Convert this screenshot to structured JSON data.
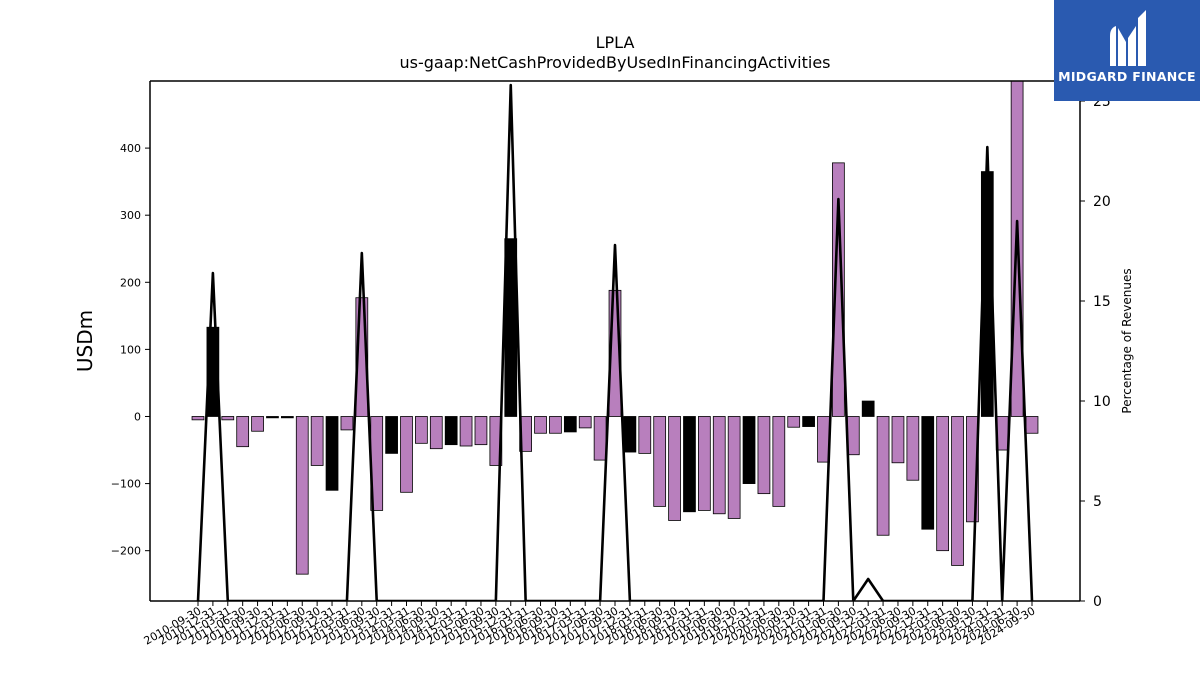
{
  "chart_data": {
    "type": "bar",
    "title": "LPLA",
    "subtitle": "us-gaap:NetCashProvidedByUsedInFinancingActivities",
    "ylabel": "USDm",
    "y2label": "Percentage of Revenues",
    "ylim": [
      -275,
      500
    ],
    "y2lim": [
      0,
      26
    ],
    "yticks": [
      -200,
      -100,
      0,
      100,
      200,
      300,
      400
    ],
    "y2ticks": [
      0,
      5,
      10,
      15,
      20,
      25
    ],
    "categories": [
      "2010-09-30",
      "2010-12-31",
      "2011-03-31",
      "2011-06-30",
      "2011-09-30",
      "2011-12-31",
      "2012-03-31",
      "2012-06-30",
      "2012-09-30",
      "2012-12-31",
      "2013-03-31",
      "2013-06-30",
      "2013-09-30",
      "2013-12-31",
      "2014-03-31",
      "2014-06-30",
      "2014-09-30",
      "2014-12-31",
      "2015-03-31",
      "2015-06-30",
      "2015-09-30",
      "2015-12-31",
      "2016-03-31",
      "2016-06-30",
      "2016-09-30",
      "2016-12-31",
      "2017-03-31",
      "2017-06-30",
      "2017-09-30",
      "2017-12-31",
      "2018-03-31",
      "2018-06-30",
      "2018-09-30",
      "2018-12-31",
      "2019-03-31",
      "2019-06-30",
      "2019-09-30",
      "2019-12-31",
      "2020-03-31",
      "2020-06-30",
      "2020-09-30",
      "2020-12-31",
      "2021-03-31",
      "2021-06-30",
      "2021-09-30",
      "2021-12-31",
      "2022-03-31",
      "2022-06-30",
      "2022-09-30",
      "2022-12-31",
      "2023-03-31",
      "2023-06-30",
      "2023-09-30",
      "2023-12-31",
      "2024-03-31",
      "2024-06-30",
      "2024-09-30"
    ],
    "values": [
      -5,
      133,
      -5,
      -45,
      -22,
      -2,
      -2,
      -235,
      -73,
      -110,
      -20,
      177,
      -140,
      -55,
      -113,
      -40,
      -48,
      -42,
      -44,
      -42,
      -73,
      265,
      -52,
      -25,
      -25,
      -23,
      -17,
      -65,
      188,
      -53,
      -55,
      -134,
      -155,
      -142,
      -140,
      -145,
      -152,
      -100,
      -115,
      -134,
      -16,
      -15,
      -68,
      378,
      -57,
      23,
      -177,
      -69,
      -95,
      -168,
      -200,
      -222,
      -157,
      365,
      -50,
      500,
      -25
    ],
    "bar_colors": [
      "p",
      "k",
      "p",
      "p",
      "p",
      "k",
      "k",
      "p",
      "p",
      "k",
      "p",
      "p",
      "p",
      "k",
      "p",
      "p",
      "p",
      "k",
      "p",
      "p",
      "p",
      "k",
      "p",
      "p",
      "p",
      "k",
      "p",
      "p",
      "p",
      "k",
      "p",
      "p",
      "p",
      "k",
      "p",
      "p",
      "p",
      "k",
      "p",
      "p",
      "p",
      "k",
      "p",
      "p",
      "p",
      "k",
      "p",
      "p",
      "p",
      "k",
      "p",
      "p",
      "p",
      "k",
      "p",
      "p",
      "p"
    ],
    "pct_of_revenues": [
      0,
      16.4,
      0,
      0,
      0,
      0,
      0,
      0,
      0,
      0,
      0,
      17.4,
      0,
      0,
      0,
      0,
      0,
      0,
      0,
      0,
      0,
      25.8,
      0,
      0,
      0,
      0,
      0,
      0,
      17.8,
      0,
      0,
      0,
      0,
      0,
      0,
      0,
      0,
      0,
      0,
      0,
      0,
      0,
      0,
      20.1,
      0,
      1.1,
      0,
      0,
      0,
      0,
      0,
      0,
      0,
      22.7,
      0,
      19.0,
      0
    ],
    "colors": {
      "purple": "#b87fbd",
      "black": "#000000",
      "line": "#000000"
    },
    "grid": false
  },
  "logo": {
    "text": "MIDGARD FINANCE",
    "bg": "#2a5ab0"
  }
}
